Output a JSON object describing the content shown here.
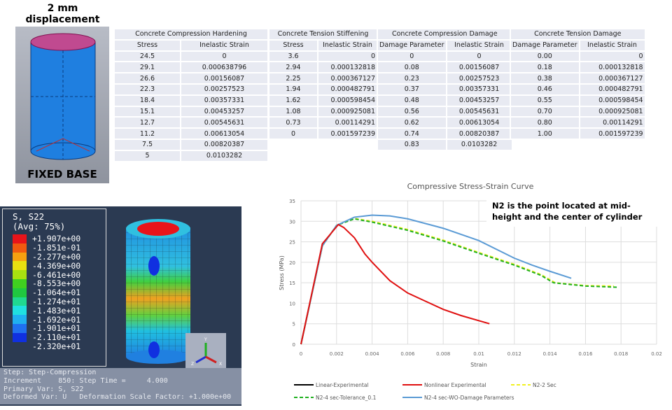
{
  "model": {
    "title": "2 mm displacement",
    "base_label": "FIXED BASE"
  },
  "tables": [
    {
      "title": "Concrete Compression Hardening",
      "headers": [
        "Stress",
        "Inelastic Strain"
      ],
      "rows": [
        [
          "24.5",
          "0"
        ],
        [
          "29.1",
          "0.000638796"
        ],
        [
          "26.6",
          "0.00156087"
        ],
        [
          "22.3",
          "0.00257523"
        ],
        [
          "18.4",
          "0.00357331"
        ],
        [
          "15.1",
          "0.00453257"
        ],
        [
          "12.7",
          "0.00545631"
        ],
        [
          "11.2",
          "0.00613054"
        ],
        [
          "7.5",
          "0.00820387"
        ],
        [
          "5",
          "0.0103282"
        ]
      ]
    },
    {
      "title": "Concrete Tension Stiffening",
      "headers": [
        "Stress",
        "Inelastic Strain"
      ],
      "rows": [
        [
          "3.6",
          "0"
        ],
        [
          "2.94",
          "0.000132818"
        ],
        [
          "2.25",
          "0.000367127"
        ],
        [
          "1.94",
          "0.000482791"
        ],
        [
          "1.62",
          "0.000598454"
        ],
        [
          "1.08",
          "0.000925081"
        ],
        [
          "0.73",
          "0.00114291"
        ],
        [
          "0",
          "0.001597239"
        ]
      ]
    },
    {
      "title": "Concrete Compression Damage",
      "headers": [
        "Damage Parameter",
        "Inelastic Strain"
      ],
      "rows": [
        [
          "0",
          "0"
        ],
        [
          "0.08",
          "0.00156087"
        ],
        [
          "0.23",
          "0.00257523"
        ],
        [
          "0.37",
          "0.00357331"
        ],
        [
          "0.48",
          "0.00453257"
        ],
        [
          "0.56",
          "0.00545631"
        ],
        [
          "0.62",
          "0.00613054"
        ],
        [
          "0.74",
          "0.00820387"
        ],
        [
          "0.83",
          "0.0103282"
        ]
      ]
    },
    {
      "title": "Concrete Tension Damage",
      "headers": [
        "Damage Parameter",
        "Inelastic Strain"
      ],
      "rows": [
        [
          "0.00",
          "0"
        ],
        [
          "0.18",
          "0.000132818"
        ],
        [
          "0.38",
          "0.000367127"
        ],
        [
          "0.46",
          "0.000482791"
        ],
        [
          "0.55",
          "0.000598454"
        ],
        [
          "0.70",
          "0.000925081"
        ],
        [
          "0.80",
          "0.00114291"
        ],
        [
          "1.00",
          "0.001597239"
        ]
      ]
    }
  ],
  "contour": {
    "title": "S, S22",
    "avg": "(Avg: 75%)",
    "values": [
      "+1.907e+00",
      "-1.851e-01",
      "-2.277e+00",
      "-4.369e+00",
      "-6.461e+00",
      "-8.553e+00",
      "-1.064e+01",
      "-1.274e+01",
      "-1.483e+01",
      "-1.692e+01",
      "-1.901e+01",
      "-2.110e+01",
      "-2.320e+01"
    ],
    "colors": [
      "#e8141a",
      "#f05a10",
      "#f5a010",
      "#e8e010",
      "#a8e010",
      "#40d020",
      "#20c840",
      "#20d890",
      "#20e0e0",
      "#20b0f0",
      "#2070f0",
      "#1030e0"
    ]
  },
  "triad": {
    "y": "Y",
    "z": "Z",
    "x": "X"
  },
  "status": [
    "Step: Step-Compression",
    "Increment    850: Step Time =     4.000",
    "Primary Var: S, S22",
    "Deformed Var: U   Deformation Scale Factor: +1.000e+00"
  ],
  "chart_data": {
    "type": "line",
    "title": "Compressive Stress-Strain Curve",
    "xlabel": "Strain",
    "ylabel": "Stress (MPa)",
    "xlim": [
      0,
      0.02
    ],
    "ylim": [
      0,
      35
    ],
    "xticks": [
      "0",
      "0.002",
      "0.004",
      "0.006",
      "0.008",
      "0.01",
      "0.012",
      "0.014",
      "0.016",
      "0.018",
      "0.02"
    ],
    "yticks": [
      "0",
      "5",
      "10",
      "15",
      "20",
      "25",
      "30",
      "35"
    ],
    "annotation": "N2 is the point located at mid-height and the center of cylinder",
    "series": [
      {
        "name": "Linear-Experimental",
        "color": "#000000",
        "dash": "",
        "x": [
          0,
          0.0012
        ],
        "y": [
          0,
          24
        ]
      },
      {
        "name": "Nonlinear Experimental",
        "color": "#e01010",
        "dash": "",
        "x": [
          0,
          0.0012,
          0.0021,
          0.0024,
          0.003,
          0.0036,
          0.004,
          0.005,
          0.006,
          0.007,
          0.008,
          0.009,
          0.0106
        ],
        "y": [
          0,
          24.5,
          29.2,
          28.5,
          26,
          22,
          20,
          15.5,
          12.5,
          10.5,
          8.5,
          7,
          5
        ]
      },
      {
        "name": "N2-2 Sec",
        "color": "#f0f020",
        "dash": "5,3",
        "x": [
          0,
          0.0012,
          0.002,
          0.003,
          0.004,
          0.006,
          0.008,
          0.01,
          0.012,
          0.0135,
          0.0143,
          0.016,
          0.0176
        ],
        "y": [
          0,
          24,
          29,
          30.7,
          30,
          28,
          25.4,
          22.4,
          19.5,
          17,
          15,
          14.3,
          14.2
        ]
      },
      {
        "name": "N2-4 sec-Tolerance_0.1",
        "color": "#20b020",
        "dash": "5,3",
        "x": [
          0,
          0.0012,
          0.002,
          0.003,
          0.004,
          0.006,
          0.008,
          0.01,
          0.012,
          0.0135,
          0.0142,
          0.016,
          0.0178
        ],
        "y": [
          0,
          24,
          29,
          30.6,
          29.8,
          27.8,
          25.2,
          22.2,
          19.3,
          16.8,
          15,
          14.2,
          13.9
        ]
      },
      {
        "name": "N2-4 sec-WO-Damage Parameters",
        "color": "#5b9bd5",
        "dash": "",
        "x": [
          0,
          0.0012,
          0.002,
          0.003,
          0.004,
          0.005,
          0.006,
          0.008,
          0.01,
          0.012,
          0.013,
          0.014,
          0.0152
        ],
        "y": [
          0,
          24,
          29,
          31,
          31.5,
          31.3,
          30.6,
          28.3,
          25.3,
          21,
          19.3,
          17.8,
          16.1
        ]
      }
    ],
    "legend": "bottom"
  }
}
